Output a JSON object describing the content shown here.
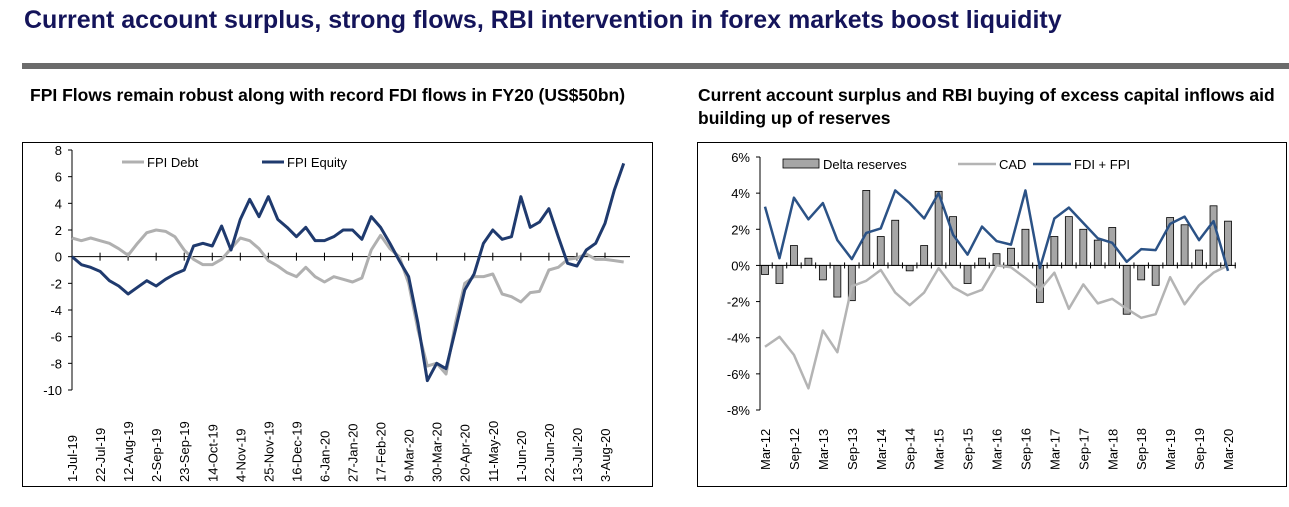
{
  "title": "Current account surplus, strong flows, RBI intervention in forex markets boost liquidity",
  "colors": {
    "title": "#14145a",
    "debt": "#b0b0b0",
    "equity": "#1f3a6e",
    "bars": "#a6a6a6",
    "cad": "#b4b4b4",
    "fdifpi": "#2b5286"
  },
  "chart_data": [
    {
      "type": "line",
      "title": "FPI Flows remain robust along with record FDI flows in FY20 (US$50bn)",
      "legend": "top",
      "ylim": [
        -10,
        8
      ],
      "yticks": [
        "8",
        "6",
        "4",
        "2",
        "0",
        "-2",
        "-4",
        "-6",
        "-8",
        "-10"
      ],
      "xtick_labels": [
        "1-Jul-19",
        "22-Jul-19",
        "12-Aug-19",
        "2-Sep-19",
        "23-Sep-19",
        "14-Oct-19",
        "4-Nov-19",
        "25-Nov-19",
        "16-Dec-19",
        "6-Jan-20",
        "27-Jan-20",
        "17-Feb-20",
        "9-Mar-20",
        "30-Mar-20",
        "20-Apr-20",
        "11-May-20",
        "1-Jun-20",
        "22-Jun-20",
        "13-Jul-20",
        "3-Aug-20"
      ],
      "x": [
        "2019-07-01",
        "2019-07-08",
        "2019-07-15",
        "2019-07-22",
        "2019-07-29",
        "2019-08-05",
        "2019-08-12",
        "2019-08-19",
        "2019-08-26",
        "2019-09-02",
        "2019-09-09",
        "2019-09-16",
        "2019-09-23",
        "2019-09-30",
        "2019-10-07",
        "2019-10-14",
        "2019-10-21",
        "2019-10-28",
        "2019-11-04",
        "2019-11-11",
        "2019-11-18",
        "2019-11-25",
        "2019-12-02",
        "2019-12-09",
        "2019-12-16",
        "2019-12-23",
        "2019-12-30",
        "2020-01-06",
        "2020-01-13",
        "2020-01-20",
        "2020-01-27",
        "2020-02-03",
        "2020-02-10",
        "2020-02-17",
        "2020-02-24",
        "2020-03-02",
        "2020-03-09",
        "2020-03-16",
        "2020-03-23",
        "2020-03-30",
        "2020-04-06",
        "2020-04-13",
        "2020-04-20",
        "2020-04-27",
        "2020-05-04",
        "2020-05-11",
        "2020-05-18",
        "2020-05-25",
        "2020-06-01",
        "2020-06-08",
        "2020-06-15",
        "2020-06-22",
        "2020-06-29",
        "2020-07-06",
        "2020-07-13",
        "2020-07-20",
        "2020-07-27",
        "2020-08-03",
        "2020-08-10",
        "2020-08-17"
      ],
      "series": [
        {
          "name": "FPI Debt",
          "values": [
            1.4,
            1.2,
            1.4,
            1.2,
            1.0,
            0.6,
            0.1,
            1.0,
            1.8,
            2.0,
            1.9,
            1.5,
            0.5,
            -0.2,
            -0.6,
            -0.6,
            -0.2,
            0.6,
            1.4,
            1.2,
            0.6,
            -0.3,
            -0.7,
            -1.2,
            -1.5,
            -0.8,
            -1.5,
            -1.9,
            -1.5,
            -1.7,
            -1.9,
            -1.6,
            0.5,
            1.6,
            0.6,
            0.0,
            -2.0,
            -5.5,
            -8.2,
            -8.0,
            -8.8,
            -5.0,
            -2.0,
            -1.5,
            -1.5,
            -1.3,
            -2.8,
            -3.0,
            -3.4,
            -2.7,
            -2.6,
            -1.0,
            -0.8,
            -0.2,
            -0.1,
            0.2,
            -0.2,
            -0.2,
            -0.3,
            -0.4
          ]
        },
        {
          "name": "FPI Equity",
          "values": [
            0,
            -0.6,
            -0.8,
            -1.1,
            -1.8,
            -2.2,
            -2.8,
            -2.3,
            -1.8,
            -2.2,
            -1.7,
            -1.3,
            -1.0,
            0.8,
            1.0,
            0.8,
            2.3,
            0.5,
            2.8,
            4.3,
            3.0,
            4.5,
            2.8,
            2.2,
            1.5,
            2.2,
            1.2,
            1.2,
            1.5,
            2.0,
            2.0,
            1.3,
            3.0,
            2.2,
            1.0,
            -0.3,
            -1.5,
            -5.0,
            -9.3,
            -8.0,
            -8.4,
            -5.5,
            -2.5,
            -1.3,
            1.0,
            2.0,
            1.3,
            1.5,
            4.5,
            2.2,
            2.6,
            3.6,
            1.5,
            -0.5,
            -0.7,
            0.5,
            1.0,
            2.5,
            5.0,
            7.0
          ]
        }
      ]
    },
    {
      "type": "bar+line",
      "title": "Current account surplus and RBI buying of excess capital inflows aid building up of reserves",
      "legend": "top",
      "ylim": [
        -8,
        6
      ],
      "yticks": [
        "6%",
        "4%",
        "2%",
        "0%",
        "-2%",
        "-4%",
        "-6%",
        "-8%"
      ],
      "xtick_labels": [
        "Mar-12",
        "Sep-12",
        "Mar-13",
        "Sep-13",
        "Mar-14",
        "Sep-14",
        "Mar-15",
        "Sep-15",
        "Mar-16",
        "Sep-16",
        "Mar-17",
        "Sep-17",
        "Mar-18",
        "Sep-18",
        "Mar-19",
        "Sep-19",
        "Mar-20"
      ],
      "categories": [
        "Mar-12",
        "Jun-12",
        "Sep-12",
        "Dec-12",
        "Mar-13",
        "Jun-13",
        "Sep-13",
        "Dec-13",
        "Mar-14",
        "Jun-14",
        "Sep-14",
        "Dec-14",
        "Mar-15",
        "Jun-15",
        "Sep-15",
        "Dec-15",
        "Mar-16",
        "Jun-16",
        "Sep-16",
        "Dec-16",
        "Mar-17",
        "Jun-17",
        "Sep-17",
        "Dec-17",
        "Mar-18",
        "Jun-18",
        "Sep-18",
        "Dec-18",
        "Mar-19",
        "Jun-19",
        "Sep-19",
        "Dec-19",
        "Mar-20"
      ],
      "series": [
        {
          "name": "Delta reserves",
          "type": "bar",
          "values": [
            -0.5,
            -1.0,
            1.1,
            0.4,
            -0.8,
            -1.75,
            -1.95,
            4.15,
            1.6,
            2.5,
            -0.3,
            1.1,
            4.1,
            2.7,
            -1.0,
            0.4,
            0.65,
            0.95,
            2.0,
            -2.05,
            1.6,
            2.7,
            2.0,
            1.4,
            2.1,
            -2.7,
            -0.8,
            -1.1,
            2.65,
            2.25,
            0.85,
            3.3,
            2.45
          ]
        },
        {
          "name": "CAD",
          "type": "line",
          "values": [
            -4.5,
            -3.95,
            -4.95,
            -6.8,
            -3.6,
            -4.8,
            -1.15,
            -0.85,
            -0.25,
            -1.5,
            -2.2,
            -1.5,
            -0.15,
            -1.2,
            -1.65,
            -1.35,
            0,
            -0.1,
            -0.7,
            -1.35,
            -0.4,
            -2.4,
            -1.05,
            -2.1,
            -1.85,
            -2.4,
            -2.9,
            -2.7,
            -0.65,
            -2.15,
            -1.1,
            -0.4,
            0
          ]
        },
        {
          "name": "FDI + FPI",
          "type": "line",
          "values": [
            3.25,
            0.4,
            3.75,
            2.55,
            3.45,
            1.4,
            0.35,
            1.8,
            2.05,
            4.15,
            3.45,
            2.6,
            4.0,
            1.7,
            0.6,
            2.15,
            1.35,
            1.15,
            4.15,
            -0.15,
            2.6,
            3.2,
            2.35,
            1.5,
            1.25,
            0.2,
            0.9,
            0.85,
            2.3,
            2.7,
            1.4,
            2.45,
            -0.3
          ]
        }
      ]
    }
  ]
}
